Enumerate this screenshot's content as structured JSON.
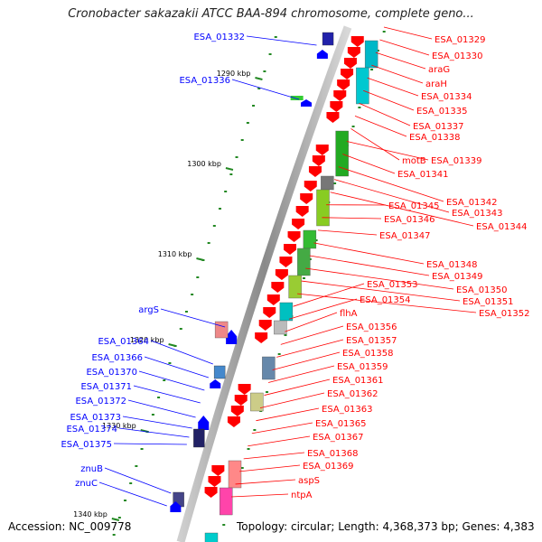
{
  "title": "Cronobacter sakazakii ATCC BAA-894 chromosome, complete geno...",
  "footer": {
    "accession": "Accession: NC_009778",
    "summary": "Topology: circular; Length: 4,368,373 bp; Genes: 4,383"
  },
  "colors": {
    "red": "#ff0000",
    "blue": "#0000ff",
    "backbone": "#999999"
  },
  "ticks": [
    "1290 kbp",
    "1300 kbp",
    "1310 kbp",
    "1320 kbp",
    "1330 kbp",
    "1340 kbp"
  ],
  "right_genes": [
    "ESA_01329",
    "ESA_01330",
    "araG",
    "araH",
    "ESA_01334",
    "ESA_01335",
    "ESA_01337",
    "ESA_01338",
    "motB",
    "ESA_01339",
    "ESA_01341",
    "ESA_01342",
    "ESA_01343",
    "ESA_01344",
    "ESA_01345",
    "ESA_01346",
    "ESA_01347",
    "ESA_01348",
    "ESA_01349",
    "ESA_01350",
    "ESA_01351",
    "ESA_01352",
    "ESA_01353",
    "ESA_01354",
    "flhA",
    "ESA_01356",
    "ESA_01357",
    "ESA_01358",
    "ESA_01359",
    "ESA_01361",
    "ESA_01362",
    "ESA_01363",
    "ESA_01365",
    "ESA_01367",
    "ESA_01368",
    "ESA_01369",
    "aspS",
    "ntpA"
  ],
  "left_genes": [
    "ESA_01332",
    "ESA_01336",
    "argS",
    "ESA_01364",
    "ESA_01366",
    "ESA_01370",
    "ESA_01371",
    "ESA_01372",
    "ESA_01373",
    "ESA_01374",
    "ESA_01375",
    "znuB",
    "znuC"
  ]
}
